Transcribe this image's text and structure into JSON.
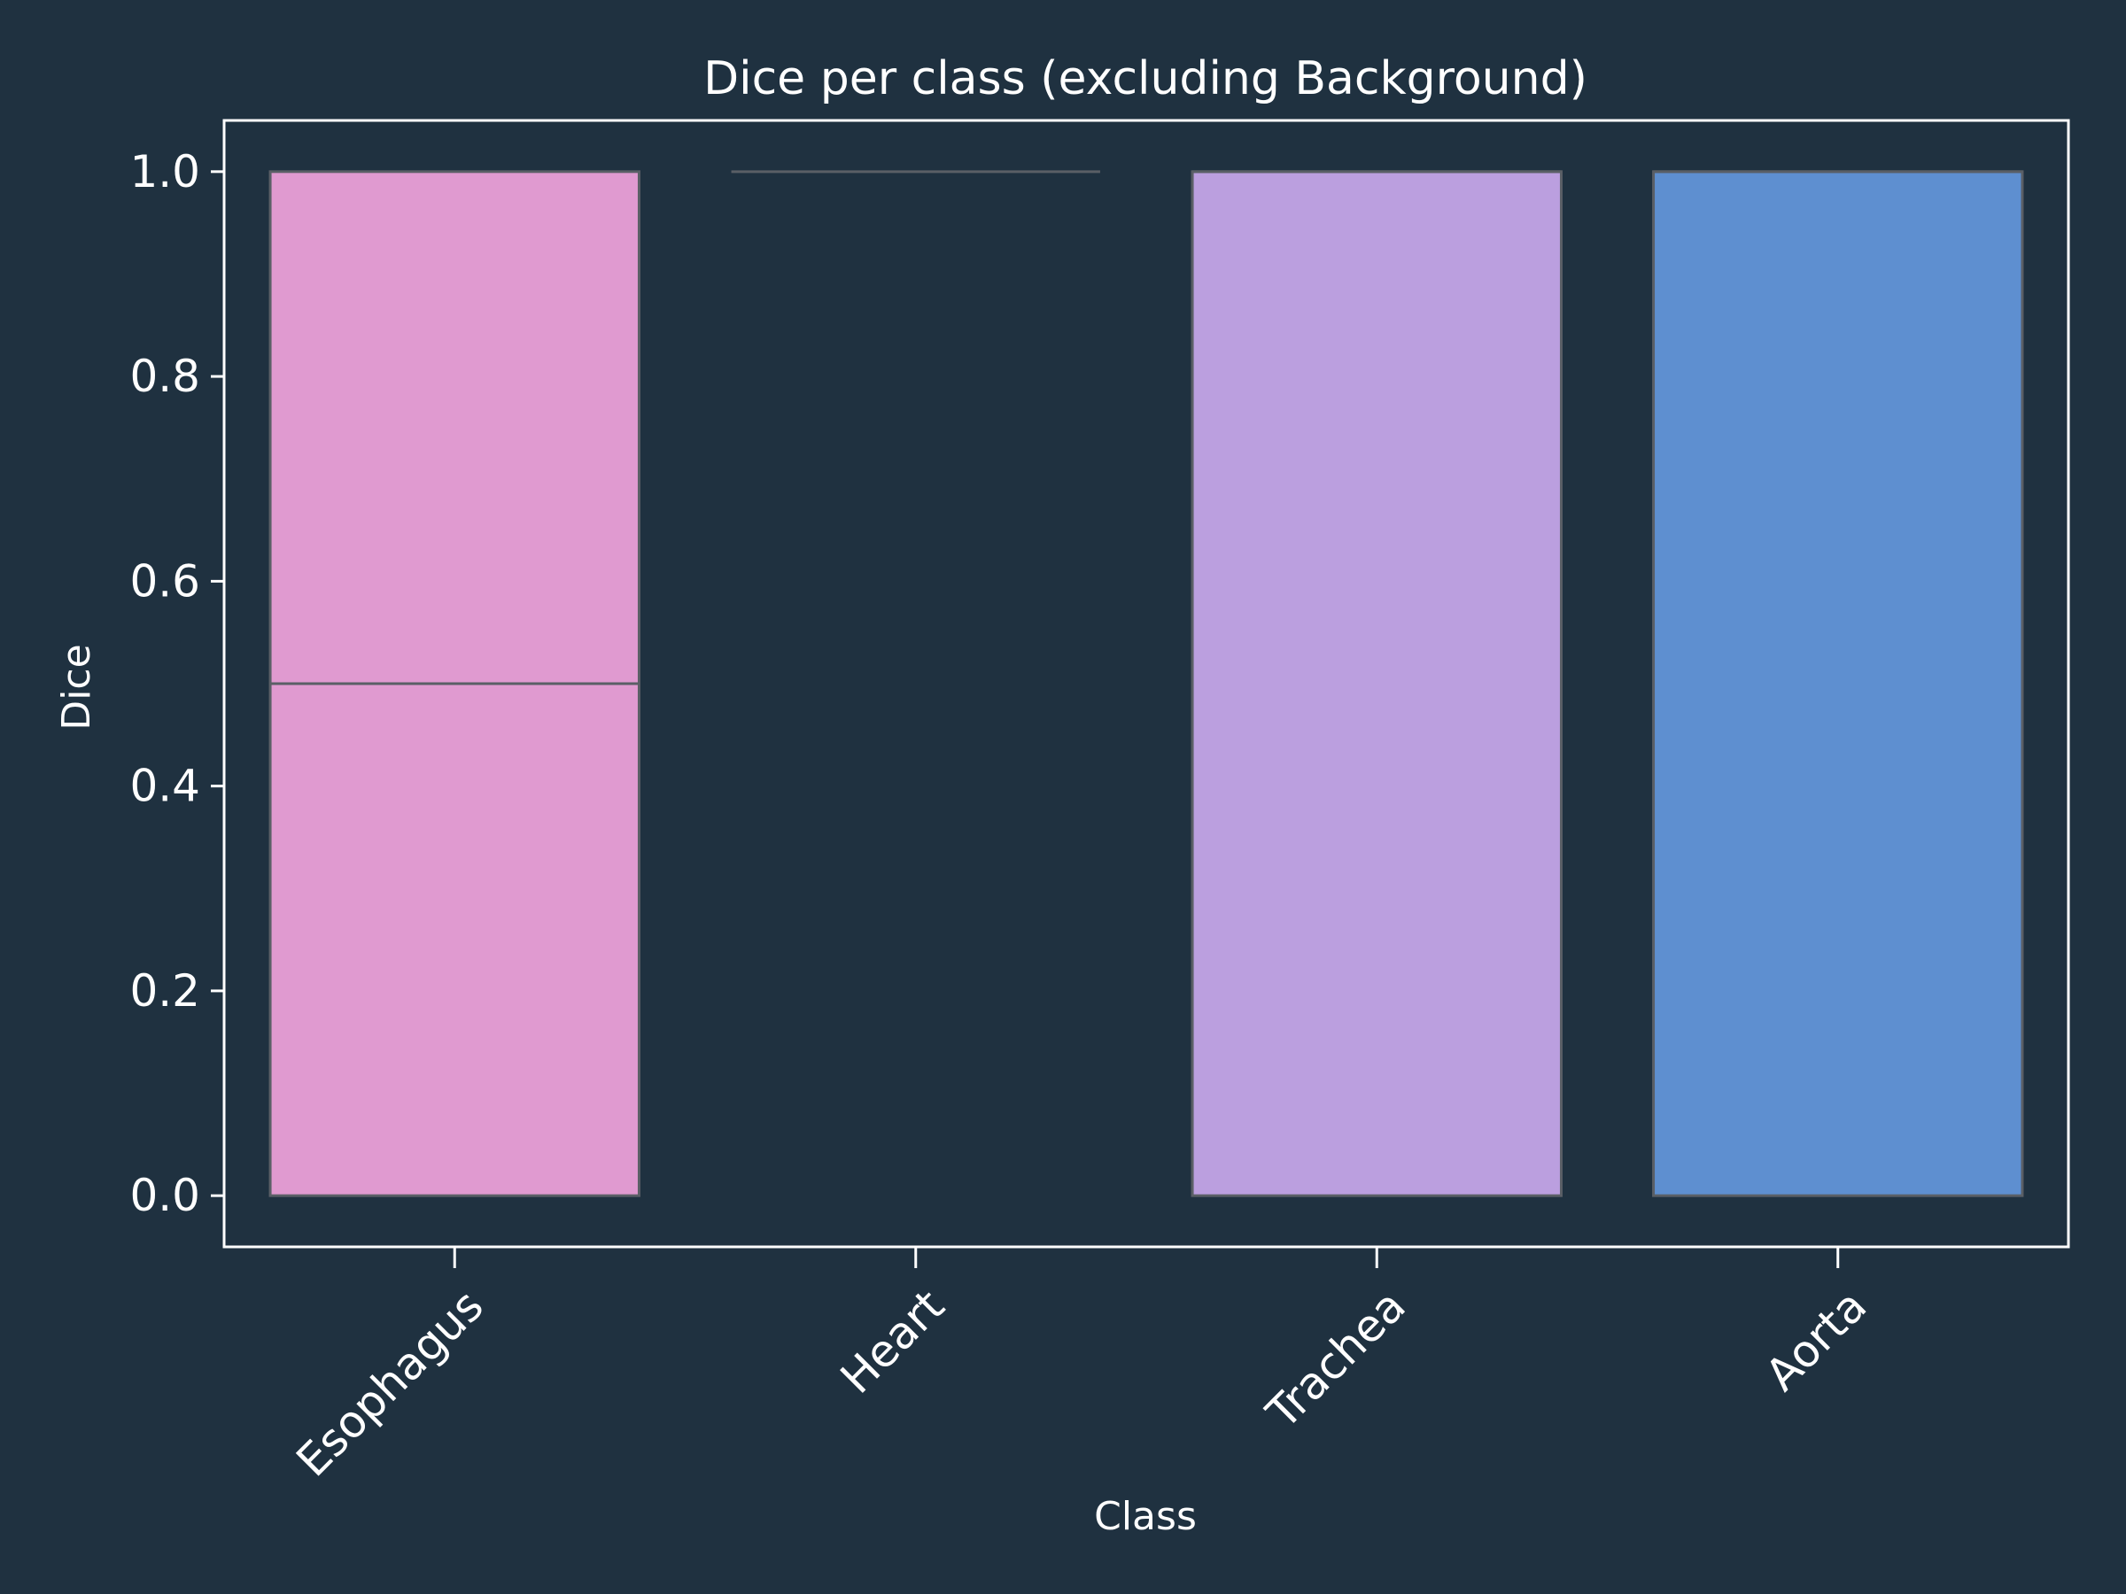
{
  "chart_data": {
    "type": "box",
    "title": "Dice per class (excluding Background)",
    "xlabel": "Class",
    "ylabel": "Dice",
    "ylim": [
      -0.05,
      1.05
    ],
    "yticks": [
      "0.0",
      "0.2",
      "0.4",
      "0.6",
      "0.8",
      "1.0"
    ],
    "grid": false,
    "categories": [
      "Esophagus",
      "Heart",
      "Trachea",
      "Aorta"
    ],
    "boxes": [
      {
        "category": "Esophagus",
        "q1": 0.0,
        "median": 0.5,
        "q3": 1.0,
        "color": "#e09ad0"
      },
      {
        "category": "Heart",
        "q1": 1.0,
        "median": 1.0,
        "q3": 1.0,
        "color": "#1f3140"
      },
      {
        "category": "Trachea",
        "q1": 0.0,
        "median": 1.0,
        "q3": 1.0,
        "color": "#bb9fdf"
      },
      {
        "category": "Aorta",
        "q1": 0.0,
        "median": 1.0,
        "q3": 1.0,
        "color": "#5e8fd0"
      }
    ],
    "colors": {
      "background": "#1f3140",
      "axes": "#ffffff",
      "box_edge": "#5a5f66"
    }
  }
}
